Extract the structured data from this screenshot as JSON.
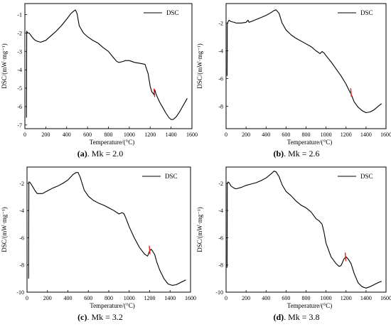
{
  "figure": {
    "ylabel": "DSC/(mW·mg⁻¹)",
    "xlabel": "Temperature/(°C)",
    "legend_label": "DSC"
  },
  "chart_data": [
    {
      "type": "line",
      "caption_letter": "(a)",
      "caption_text": ". Mk = 2.0",
      "xlabel": "Temperature/(°C)",
      "ylabel": "DSC/(mW·mg⁻¹)",
      "xlim": [
        0,
        1600
      ],
      "ylim": [
        -7.2,
        -0.4
      ],
      "xticks": [
        0,
        200,
        400,
        600,
        800,
        1000,
        1200,
        1400,
        1600
      ],
      "yticks": [
        -1,
        -2,
        -3,
        -4,
        -5,
        -6,
        -7
      ],
      "legend": "top-right",
      "series": [
        {
          "color": "#000000",
          "x": [
            15,
            18,
            25,
            40,
            60,
            80,
            100,
            120,
            150,
            200,
            250,
            300,
            350,
            400,
            440,
            470,
            485,
            500,
            520,
            560,
            600,
            650,
            700,
            750,
            800,
            850,
            880,
            900,
            940,
            960,
            980,
            1000,
            1050,
            1100,
            1150,
            1180,
            1200,
            1215,
            1225,
            1235,
            1245,
            1255,
            1270,
            1290,
            1320,
            1350,
            1380,
            1400,
            1420,
            1450,
            1480,
            1510,
            1540,
            1555
          ],
          "y": [
            -6.6,
            -1.9,
            -2.0,
            -2.0,
            -2.15,
            -2.3,
            -2.4,
            -2.45,
            -2.5,
            -2.4,
            -2.15,
            -1.9,
            -1.6,
            -1.25,
            -0.95,
            -0.8,
            -0.75,
            -0.95,
            -1.6,
            -2.0,
            -2.2,
            -2.4,
            -2.55,
            -2.8,
            -3.0,
            -3.35,
            -3.55,
            -3.6,
            -3.55,
            -3.5,
            -3.5,
            -3.5,
            -3.6,
            -3.65,
            -3.7,
            -4.2,
            -4.9,
            -5.2,
            -5.25,
            -5.35,
            -5.1,
            -5.3,
            -5.5,
            -5.75,
            -6.05,
            -6.35,
            -6.6,
            -6.7,
            -6.7,
            -6.55,
            -6.3,
            -6.0,
            -5.7,
            -5.55
          ]
        }
      ],
      "marker": {
        "x": 1240,
        "y": -5.25,
        "color": "#e8201c"
      }
    },
    {
      "type": "line",
      "caption_letter": "(b)",
      "caption_text": ". Mk = 2.6",
      "xlabel": "Temperature/(°C)",
      "ylabel": "DSC/(mW·mg⁻¹)",
      "xlim": [
        0,
        1600
      ],
      "ylim": [
        -9.6,
        -0.6
      ],
      "xticks": [
        0,
        200,
        400,
        600,
        800,
        1000,
        1200,
        1400,
        1600
      ],
      "yticks": [
        -2,
        -4,
        -6,
        -8
      ],
      "legend": "top-right",
      "series": [
        {
          "color": "#000000",
          "x": [
            10,
            12,
            20,
            30,
            50,
            80,
            100,
            150,
            200,
            220,
            230,
            250,
            300,
            350,
            400,
            450,
            480,
            500,
            530,
            560,
            600,
            650,
            700,
            750,
            800,
            850,
            900,
            940,
            960,
            980,
            1000,
            1050,
            1100,
            1150,
            1200,
            1230,
            1250,
            1280,
            1320,
            1360,
            1400,
            1440,
            1480,
            1520,
            1555
          ],
          "y": [
            -5.8,
            -2.1,
            -1.9,
            -1.8,
            -1.9,
            -1.95,
            -2.0,
            -2.0,
            -1.95,
            -1.8,
            -1.95,
            -1.9,
            -1.75,
            -1.6,
            -1.45,
            -1.25,
            -1.1,
            -1.05,
            -1.3,
            -2.0,
            -2.5,
            -2.85,
            -3.1,
            -3.3,
            -3.5,
            -3.7,
            -4.0,
            -4.2,
            -4.05,
            -4.15,
            -4.35,
            -4.8,
            -5.3,
            -5.8,
            -6.4,
            -6.85,
            -7.1,
            -7.65,
            -8.05,
            -8.3,
            -8.45,
            -8.4,
            -8.25,
            -8.0,
            -7.8
          ]
        }
      ],
      "marker": {
        "x": 1250,
        "y": -7.0,
        "color": "#e8201c"
      }
    },
    {
      "type": "line",
      "caption_letter": "(c)",
      "caption_text": ". Mk = 3.2",
      "xlabel": "Temperature/(°C)",
      "ylabel": "DSC/(mW·mg⁻¹)",
      "xlim": [
        0,
        1600
      ],
      "ylim": [
        -10,
        -0.8
      ],
      "xticks": [
        0,
        200,
        400,
        600,
        800,
        1000,
        1200,
        1400,
        1600
      ],
      "yticks": [
        -2,
        -4,
        -6,
        -8,
        -10
      ],
      "legend": "top-right",
      "series": [
        {
          "color": "#000000",
          "x": [
            15,
            18,
            25,
            40,
            60,
            80,
            100,
            150,
            200,
            250,
            300,
            350,
            400,
            450,
            480,
            500,
            520,
            560,
            600,
            650,
            700,
            750,
            800,
            850,
            900,
            930,
            950,
            970,
            1000,
            1050,
            1100,
            1150,
            1180,
            1200,
            1215,
            1230,
            1250,
            1270,
            1300,
            1340,
            1380,
            1420,
            1460,
            1500,
            1540,
            1555
          ],
          "y": [
            -9.0,
            -1.9,
            -1.9,
            -2.05,
            -2.3,
            -2.55,
            -2.75,
            -2.75,
            -2.55,
            -2.35,
            -2.2,
            -2.0,
            -1.75,
            -1.35,
            -1.2,
            -1.2,
            -1.55,
            -2.5,
            -2.95,
            -3.25,
            -3.45,
            -3.6,
            -3.8,
            -4.0,
            -4.25,
            -4.15,
            -4.25,
            -4.6,
            -5.2,
            -6.0,
            -6.7,
            -7.2,
            -7.35,
            -6.95,
            -6.85,
            -7.0,
            -7.25,
            -7.8,
            -8.4,
            -9.0,
            -9.4,
            -9.5,
            -9.45,
            -9.3,
            -9.15,
            -9.1
          ]
        }
      ],
      "marker": {
        "x": 1200,
        "y": -6.9,
        "color": "#e8201c"
      }
    },
    {
      "type": "line",
      "caption_letter": "(d)",
      "caption_text": ". Mk = 3.8",
      "xlabel": "Temperature/(°C)",
      "ylabel": "DSC/(mW·mg⁻¹)",
      "xlim": [
        0,
        1600
      ],
      "ylim": [
        -10,
        -0.8
      ],
      "xticks": [
        0,
        200,
        400,
        600,
        800,
        1000,
        1200,
        1400,
        1600
      ],
      "yticks": [
        -2,
        -4,
        -6,
        -8,
        -10
      ],
      "legend": "top-right",
      "series": [
        {
          "color": "#000000",
          "x": [
            10,
            12,
            20,
            30,
            50,
            80,
            100,
            150,
            200,
            250,
            300,
            350,
            400,
            450,
            480,
            500,
            530,
            560,
            600,
            650,
            700,
            750,
            800,
            850,
            900,
            930,
            960,
            980,
            1000,
            1050,
            1100,
            1130,
            1150,
            1180,
            1200,
            1220,
            1250,
            1280,
            1320,
            1360,
            1400,
            1440,
            1480,
            1520,
            1555
          ],
          "y": [
            -8.2,
            -2.0,
            -1.9,
            -1.95,
            -2.2,
            -2.35,
            -2.4,
            -2.3,
            -2.15,
            -2.05,
            -1.95,
            -1.8,
            -1.6,
            -1.3,
            -1.1,
            -1.15,
            -1.5,
            -2.1,
            -2.6,
            -2.9,
            -3.3,
            -3.6,
            -3.8,
            -4.1,
            -4.6,
            -4.75,
            -5.0,
            -5.6,
            -6.4,
            -7.4,
            -7.9,
            -8.1,
            -8.05,
            -7.55,
            -7.4,
            -7.55,
            -7.9,
            -8.6,
            -9.3,
            -9.6,
            -9.7,
            -9.6,
            -9.45,
            -9.3,
            -9.2
          ]
        }
      ],
      "marker": {
        "x": 1195,
        "y": -7.4,
        "color": "#e8201c"
      }
    }
  ]
}
